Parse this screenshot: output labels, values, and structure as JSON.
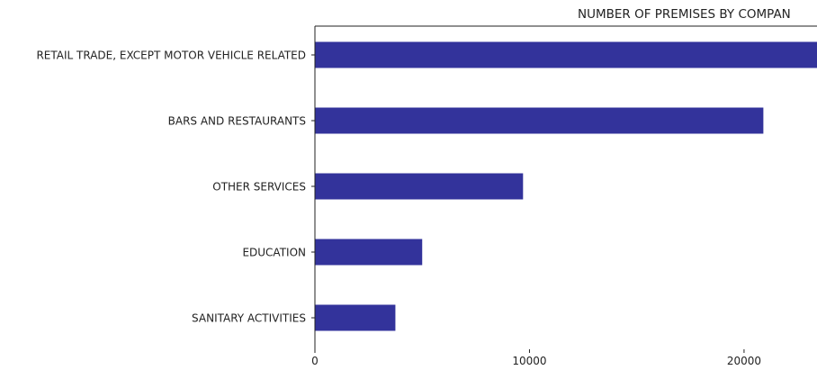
{
  "chart_data": {
    "type": "bar",
    "orientation": "horizontal",
    "title": "NUMBER OF PREMISES BY COMPAN",
    "xlabel": "",
    "ylabel": "",
    "categories": [
      "RETAIL TRADE, EXCEPT MOTOR VEHICLE RELATED",
      "BARS AND RESTAURANTS",
      "OTHER SERVICES",
      "EDUCATION",
      "SANITARY ACTIVITIES"
    ],
    "values": [
      24300,
      20900,
      9700,
      5000,
      3750
    ],
    "xlim": [
      0,
      23400
    ],
    "xticks": [
      0,
      10000,
      20000
    ],
    "xtick_labels": [
      "0",
      "10000",
      "20000"
    ],
    "bar_color": "#33339b",
    "grid": false,
    "legend": "none"
  }
}
